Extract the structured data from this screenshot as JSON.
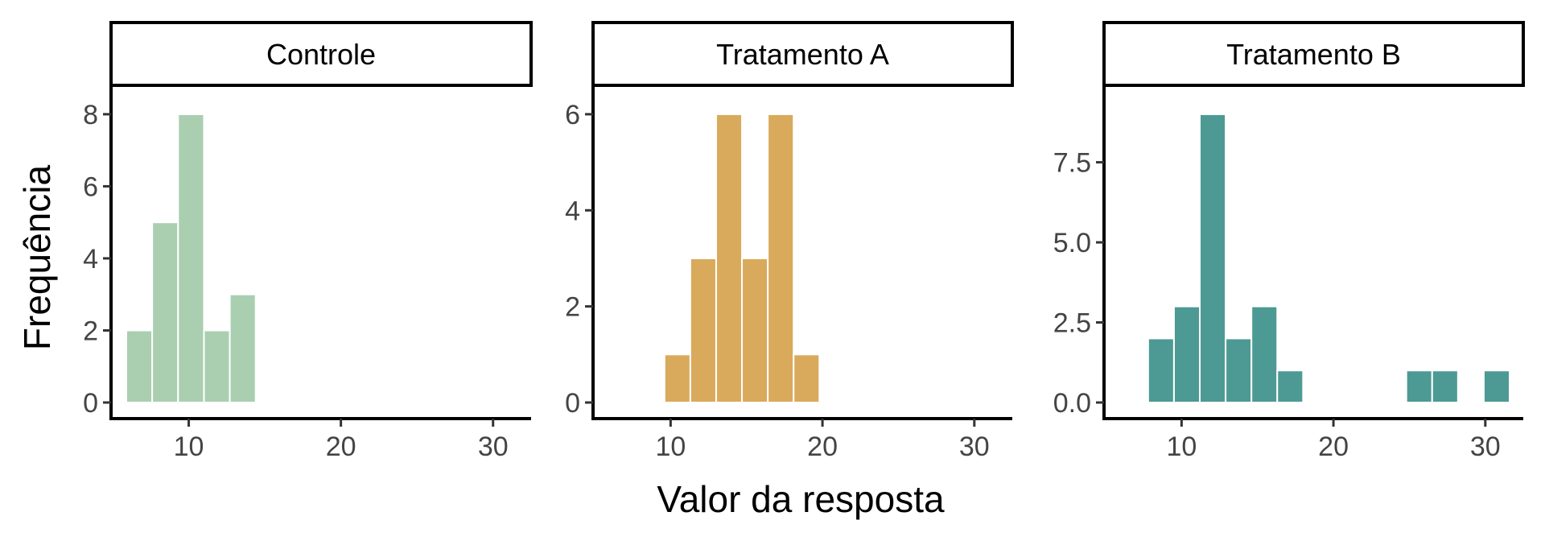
{
  "chart_data": {
    "type": "bar",
    "xlabel": "Valor da resposta",
    "ylabel": "Frequência",
    "xlim": [
      5,
      32.5
    ],
    "xticks": [
      10,
      20,
      30
    ],
    "grid": false,
    "colors": {
      "Controle": "#a9cfb0",
      "Tratamento A": "#d9aa5c",
      "Tratamento B": "#4c9a93"
    },
    "panels": [
      {
        "title": "Controle",
        "ylim": [
          0,
          8.4
        ],
        "yticks": [
          "0",
          "2",
          "4",
          "6",
          "8"
        ],
        "ytick_values": [
          0,
          2,
          4,
          6,
          8
        ],
        "bins": [
          {
            "x0": 5.9,
            "x1": 7.6,
            "count": 2
          },
          {
            "x0": 7.6,
            "x1": 9.3,
            "count": 5
          },
          {
            "x0": 9.3,
            "x1": 11.0,
            "count": 8
          },
          {
            "x0": 11.0,
            "x1": 12.7,
            "count": 2
          },
          {
            "x0": 12.7,
            "x1": 14.4,
            "count": 3
          }
        ]
      },
      {
        "title": "Tratamento A",
        "ylim": [
          0,
          6.3
        ],
        "yticks": [
          "0",
          "2",
          "4",
          "6"
        ],
        "ytick_values": [
          0,
          2,
          4,
          6
        ],
        "bins": [
          {
            "x0": 9.6,
            "x1": 11.3,
            "count": 1
          },
          {
            "x0": 11.3,
            "x1": 13.0,
            "count": 3
          },
          {
            "x0": 13.0,
            "x1": 14.7,
            "count": 6
          },
          {
            "x0": 14.7,
            "x1": 16.4,
            "count": 3
          },
          {
            "x0": 16.4,
            "x1": 18.1,
            "count": 6
          },
          {
            "x0": 18.1,
            "x1": 19.8,
            "count": 1
          }
        ]
      },
      {
        "title": "Tratamento B",
        "ylim": [
          0,
          9.45
        ],
        "yticks": [
          "0.0",
          "2.5",
          "5.0",
          "7.5"
        ],
        "ytick_values": [
          0,
          2.5,
          5,
          7.5
        ],
        "bins": [
          {
            "x0": 7.8,
            "x1": 9.5,
            "count": 2
          },
          {
            "x0": 9.5,
            "x1": 11.2,
            "count": 3
          },
          {
            "x0": 11.2,
            "x1": 12.9,
            "count": 9
          },
          {
            "x0": 12.9,
            "x1": 14.6,
            "count": 2
          },
          {
            "x0": 14.6,
            "x1": 16.3,
            "count": 3
          },
          {
            "x0": 16.3,
            "x1": 18.0,
            "count": 1
          },
          {
            "x0": 18.0,
            "x1": 19.7,
            "count": 0
          },
          {
            "x0": 19.7,
            "x1": 21.4,
            "count": 0
          },
          {
            "x0": 21.4,
            "x1": 23.1,
            "count": 0
          },
          {
            "x0": 23.1,
            "x1": 24.8,
            "count": 0
          },
          {
            "x0": 24.8,
            "x1": 26.5,
            "count": 1
          },
          {
            "x0": 26.5,
            "x1": 28.2,
            "count": 1
          },
          {
            "x0": 28.2,
            "x1": 29.9,
            "count": 0
          },
          {
            "x0": 29.9,
            "x1": 31.6,
            "count": 1
          }
        ]
      }
    ]
  }
}
